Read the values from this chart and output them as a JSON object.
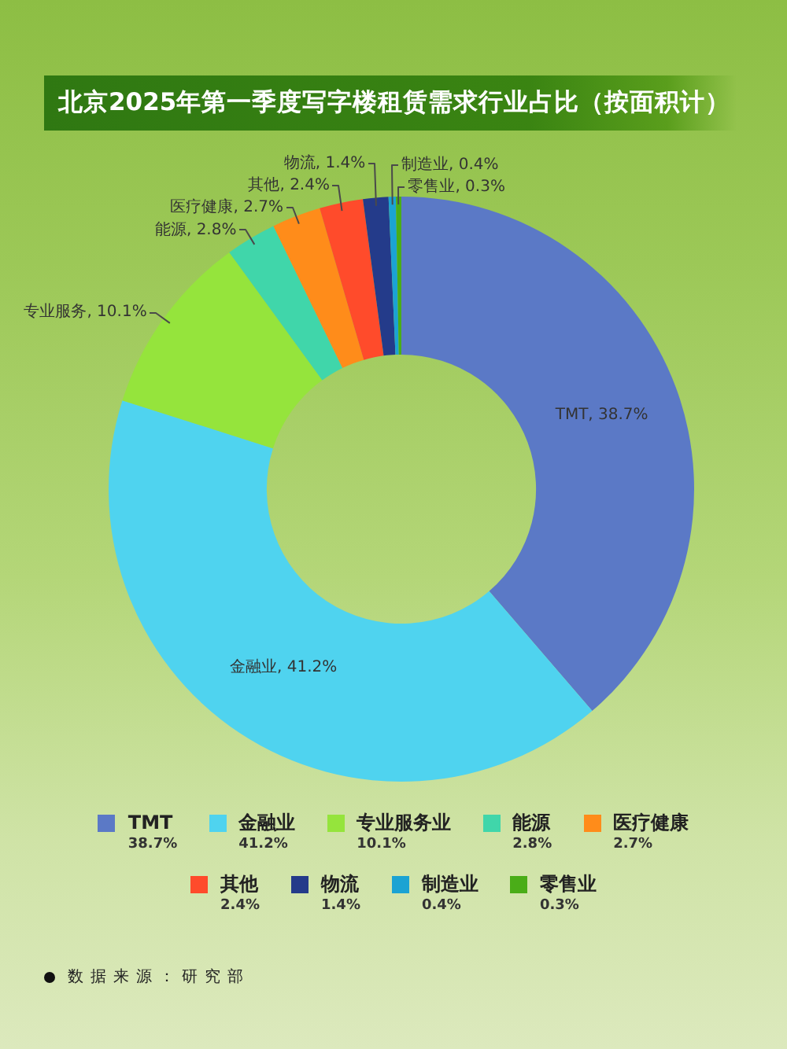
{
  "chart_data": {
    "type": "donut",
    "title": "北京2025年第一季度写字楼租赁需求行业占比（按面积计）",
    "categories": [
      "TMT",
      "金融业",
      "专业服务业",
      "能源",
      "医疗健康",
      "其他",
      "物流",
      "制造业",
      "零售业"
    ],
    "values": [
      38.7,
      41.2,
      10.1,
      2.8,
      2.7,
      2.4,
      1.4,
      0.4,
      0.3
    ],
    "colors": [
      "#5b79c6",
      "#4fd3ef",
      "#95e43c",
      "#40d6aa",
      "#ff8c1a",
      "#ff4b2b",
      "#243b8a",
      "#1ba3d3",
      "#4aad18"
    ],
    "value_labels": [
      "38.7%",
      "41.2%",
      "10.1%",
      "2.8%",
      "2.7%",
      "2.4%",
      "1.4%",
      "0.4%",
      "0.3%"
    ],
    "legend": "bottom",
    "annotations": [
      {
        "text": "TMT, 38.7%",
        "x": "TMT"
      },
      {
        "text": "金融业, 41.2%",
        "x": "金融业"
      },
      {
        "text": "专业服务, 10.1%",
        "x": "专业服务业"
      },
      {
        "text": "能源, 2.8%",
        "x": "能源"
      },
      {
        "text": "医疗健康, 2.7%",
        "x": "医疗健康"
      },
      {
        "text": "其他, 2.4%",
        "x": "其他"
      },
      {
        "text": "物流, 1.4%",
        "x": "物流"
      },
      {
        "text": "制造业, 0.4%",
        "x": "制造业"
      },
      {
        "text": "零售业, 0.3%",
        "x": "零售业"
      },
      "数据来源：研究部"
    ]
  }
}
